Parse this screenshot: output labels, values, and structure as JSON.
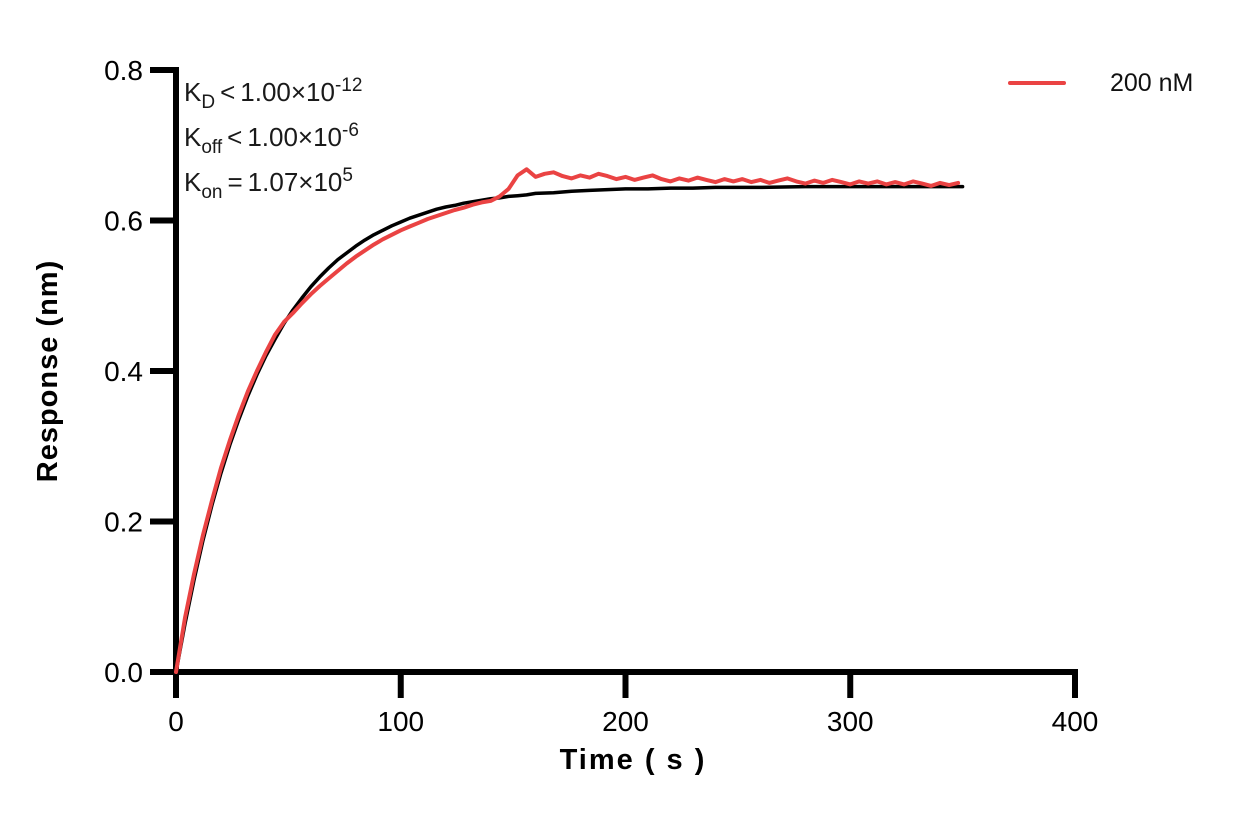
{
  "chart": {
    "annotations": [
      {
        "symbol": "K",
        "sub": "D",
        "op": "<",
        "value": "1.00×10",
        "exp": "-12"
      },
      {
        "symbol": "K",
        "sub": "off",
        "op": "<",
        "value": "1.00×10",
        "exp": "-6"
      },
      {
        "symbol": "K",
        "sub": "on",
        "op": "=",
        "value": "1.07×10",
        "exp": "5"
      }
    ],
    "legend": {
      "label": "200 nM",
      "color": "#ea4343",
      "position": "top-right"
    }
  },
  "chart_data": {
    "type": "line",
    "title": "",
    "xlabel": "Time ( s )",
    "ylabel": "Response (nm)",
    "xlim": [
      0,
      400
    ],
    "ylim": [
      0,
      0.8
    ],
    "xticks": [
      0,
      100,
      200,
      300,
      400
    ],
    "xtick_labels": [
      "0",
      "100",
      "200",
      "300",
      "400"
    ],
    "yticks": [
      0,
      0.2,
      0.4,
      0.6,
      0.8
    ],
    "ytick_labels": [
      "0.0",
      "0.2",
      "0.4",
      "0.6",
      "0.8"
    ],
    "grid": false,
    "legend_position": "top-right",
    "axis_color": "#000000",
    "series": [
      {
        "name": "fit",
        "role": "fitted-curve",
        "color": "#000000",
        "width": 3.5,
        "points": [
          [
            0,
            0
          ],
          [
            4,
            0.064
          ],
          [
            8,
            0.122
          ],
          [
            12,
            0.175
          ],
          [
            16,
            0.222
          ],
          [
            20,
            0.264
          ],
          [
            24,
            0.302
          ],
          [
            28,
            0.336
          ],
          [
            32,
            0.367
          ],
          [
            36,
            0.395
          ],
          [
            40,
            0.42
          ],
          [
            44,
            0.442
          ],
          [
            48,
            0.463
          ],
          [
            52,
            0.481
          ],
          [
            56,
            0.497
          ],
          [
            60,
            0.512
          ],
          [
            64,
            0.525
          ],
          [
            68,
            0.537
          ],
          [
            72,
            0.548
          ],
          [
            76,
            0.557
          ],
          [
            80,
            0.566
          ],
          [
            84,
            0.574
          ],
          [
            88,
            0.581
          ],
          [
            92,
            0.587
          ],
          [
            96,
            0.593
          ],
          [
            100,
            0.598
          ],
          [
            104,
            0.603
          ],
          [
            108,
            0.607
          ],
          [
            112,
            0.611
          ],
          [
            116,
            0.615
          ],
          [
            120,
            0.618
          ],
          [
            124,
            0.62
          ],
          [
            128,
            0.623
          ],
          [
            132,
            0.625
          ],
          [
            136,
            0.627
          ],
          [
            140,
            0.629
          ],
          [
            144,
            0.63
          ],
          [
            148,
            0.632
          ],
          [
            152,
            0.633
          ],
          [
            156,
            0.634
          ],
          [
            160,
            0.636
          ],
          [
            168,
            0.637
          ],
          [
            176,
            0.639
          ],
          [
            184,
            0.64
          ],
          [
            192,
            0.641
          ],
          [
            200,
            0.642
          ],
          [
            210,
            0.642
          ],
          [
            220,
            0.643
          ],
          [
            230,
            0.643
          ],
          [
            240,
            0.644
          ],
          [
            250,
            0.644
          ],
          [
            260,
            0.644
          ],
          [
            280,
            0.645
          ],
          [
            300,
            0.645
          ],
          [
            320,
            0.645
          ],
          [
            350,
            0.645
          ]
        ]
      },
      {
        "name": "200 nM",
        "role": "measured-data",
        "color": "#ea4343",
        "width": 4,
        "points": [
          [
            0,
            0
          ],
          [
            4,
            0.072
          ],
          [
            8,
            0.13
          ],
          [
            12,
            0.182
          ],
          [
            16,
            0.228
          ],
          [
            20,
            0.271
          ],
          [
            24,
            0.308
          ],
          [
            28,
            0.342
          ],
          [
            32,
            0.373
          ],
          [
            36,
            0.4
          ],
          [
            40,
            0.425
          ],
          [
            44,
            0.448
          ],
          [
            48,
            0.465
          ],
          [
            52,
            0.477
          ],
          [
            56,
            0.49
          ],
          [
            60,
            0.502
          ],
          [
            64,
            0.513
          ],
          [
            68,
            0.523
          ],
          [
            72,
            0.533
          ],
          [
            76,
            0.543
          ],
          [
            80,
            0.552
          ],
          [
            84,
            0.56
          ],
          [
            88,
            0.568
          ],
          [
            92,
            0.575
          ],
          [
            96,
            0.581
          ],
          [
            100,
            0.587
          ],
          [
            104,
            0.592
          ],
          [
            108,
            0.597
          ],
          [
            112,
            0.602
          ],
          [
            116,
            0.606
          ],
          [
            120,
            0.61
          ],
          [
            124,
            0.614
          ],
          [
            128,
            0.617
          ],
          [
            132,
            0.621
          ],
          [
            136,
            0.624
          ],
          [
            140,
            0.626
          ],
          [
            144,
            0.632
          ],
          [
            148,
            0.642
          ],
          [
            152,
            0.66
          ],
          [
            156,
            0.668
          ],
          [
            160,
            0.658
          ],
          [
            164,
            0.662
          ],
          [
            168,
            0.664
          ],
          [
            172,
            0.659
          ],
          [
            176,
            0.656
          ],
          [
            180,
            0.66
          ],
          [
            184,
            0.657
          ],
          [
            188,
            0.662
          ],
          [
            192,
            0.659
          ],
          [
            196,
            0.655
          ],
          [
            200,
            0.658
          ],
          [
            204,
            0.654
          ],
          [
            208,
            0.657
          ],
          [
            212,
            0.66
          ],
          [
            216,
            0.655
          ],
          [
            220,
            0.652
          ],
          [
            224,
            0.656
          ],
          [
            228,
            0.653
          ],
          [
            232,
            0.657
          ],
          [
            236,
            0.654
          ],
          [
            240,
            0.651
          ],
          [
            244,
            0.655
          ],
          [
            248,
            0.652
          ],
          [
            252,
            0.655
          ],
          [
            256,
            0.651
          ],
          [
            260,
            0.654
          ],
          [
            264,
            0.65
          ],
          [
            268,
            0.653
          ],
          [
            272,
            0.656
          ],
          [
            276,
            0.652
          ],
          [
            280,
            0.649
          ],
          [
            284,
            0.653
          ],
          [
            288,
            0.65
          ],
          [
            292,
            0.654
          ],
          [
            296,
            0.651
          ],
          [
            300,
            0.648
          ],
          [
            304,
            0.652
          ],
          [
            308,
            0.649
          ],
          [
            312,
            0.652
          ],
          [
            316,
            0.648
          ],
          [
            320,
            0.651
          ],
          [
            324,
            0.648
          ],
          [
            328,
            0.652
          ],
          [
            332,
            0.649
          ],
          [
            336,
            0.646
          ],
          [
            340,
            0.65
          ],
          [
            344,
            0.647
          ],
          [
            348,
            0.65
          ]
        ]
      }
    ]
  }
}
